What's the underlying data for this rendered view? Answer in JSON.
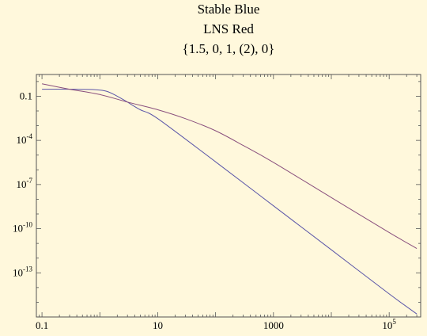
{
  "chart_data": {
    "type": "line",
    "title": [
      "Stable Blue",
      "LNS Red",
      "{1.5, 0, 1, (2), 0}"
    ],
    "xlabel": "",
    "ylabel": "",
    "xscale": "log",
    "yscale": "log",
    "xlim": [
      0.08,
      350000
    ],
    "ylim": [
      1e-16,
      3
    ],
    "x_ticks": [
      {
        "value": 0.1,
        "label": "0.1"
      },
      {
        "value": 10,
        "label": "10"
      },
      {
        "value": 1000,
        "label": "1000"
      },
      {
        "value": 100000,
        "label": "10",
        "exp": "5"
      }
    ],
    "y_ticks": [
      {
        "value": 0.1,
        "label": "0.1"
      },
      {
        "value": 0.0001,
        "label": "10",
        "exp": "-4"
      },
      {
        "value": 1e-07,
        "label": "10",
        "exp": "-7"
      },
      {
        "value": 1e-10,
        "label": "10",
        "exp": "-10"
      },
      {
        "value": 1e-13,
        "label": "10",
        "exp": "-13"
      }
    ],
    "series": [
      {
        "color": "#5b55a8",
        "x": [
          0.1,
          0.3,
          0.8,
          1.3,
          2,
          3,
          5,
          10,
          100,
          1000,
          10000,
          100000,
          300000
        ],
        "y": [
          0.3,
          0.3,
          0.28,
          0.22,
          0.1,
          0.04,
          0.012,
          0.003,
          3.5e-06,
          3.6e-09,
          3.7e-12,
          3.7e-15,
          1.6e-16
        ]
      },
      {
        "color": "#8a4f7d",
        "x": [
          0.1,
          0.3,
          1,
          3,
          10,
          30,
          100,
          300,
          1000,
          10000,
          100000,
          300000
        ],
        "y": [
          0.7,
          0.3,
          0.13,
          0.04,
          0.012,
          0.003,
          0.00045,
          4.5e-05,
          3.2e-06,
          1.3e-08,
          5.5e-11,
          4.5e-12
        ]
      }
    ],
    "grid": false,
    "legend": "none"
  }
}
